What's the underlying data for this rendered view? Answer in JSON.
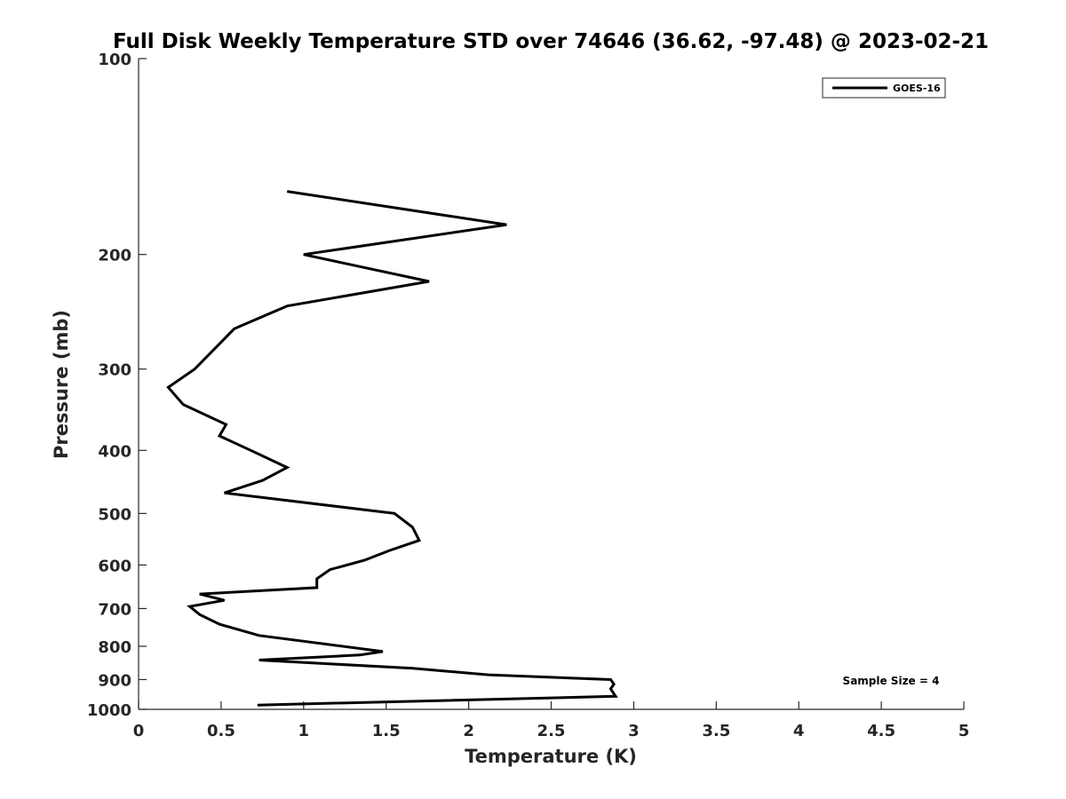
{
  "chart_data": {
    "type": "line",
    "title": "Full Disk Weekly Temperature STD over 74646 (36.62, -97.48) @ 2023-02-21",
    "xlabel": "Temperature (K)",
    "ylabel": "Pressure (mb)",
    "xlim": [
      0,
      5
    ],
    "ylim": [
      100,
      1000
    ],
    "y_scale": "log",
    "y_reversed": true,
    "x_ticks": [
      "0",
      "0.5",
      "1",
      "1.5",
      "2",
      "2.5",
      "3",
      "3.5",
      "4",
      "4.5",
      "5"
    ],
    "y_ticks": [
      "100",
      "200",
      "300",
      "400",
      "500",
      "600",
      "700",
      "800",
      "900",
      "1000"
    ],
    "grid": false,
    "legend": {
      "position": "top-right",
      "entries": [
        "GOES-16"
      ]
    },
    "annotations": [
      "Sample Size = 4"
    ],
    "series": [
      {
        "name": "GOES-16",
        "color": "#000000",
        "x": [
          0.9,
          2.23,
          1.0,
          1.76,
          0.9,
          0.58,
          0.34,
          0.18,
          0.27,
          0.53,
          0.49,
          0.68,
          0.9,
          0.75,
          0.52,
          1.55,
          1.66,
          1.7,
          1.52,
          1.37,
          1.16,
          1.08,
          1.08,
          0.37,
          0.52,
          0.31,
          0.37,
          0.49,
          0.73,
          1.48,
          1.34,
          0.73,
          1.66,
          2.12,
          2.86,
          2.88,
          2.86,
          2.89,
          0.72
        ],
        "y": [
          160,
          180,
          200,
          220,
          240,
          260,
          300,
          320,
          340,
          365,
          380,
          400,
          425,
          445,
          465,
          500,
          525,
          550,
          570,
          590,
          610,
          630,
          650,
          665,
          680,
          695,
          715,
          740,
          770,
          815,
          825,
          840,
          865,
          885,
          900,
          915,
          930,
          955,
          985
        ]
      }
    ]
  }
}
